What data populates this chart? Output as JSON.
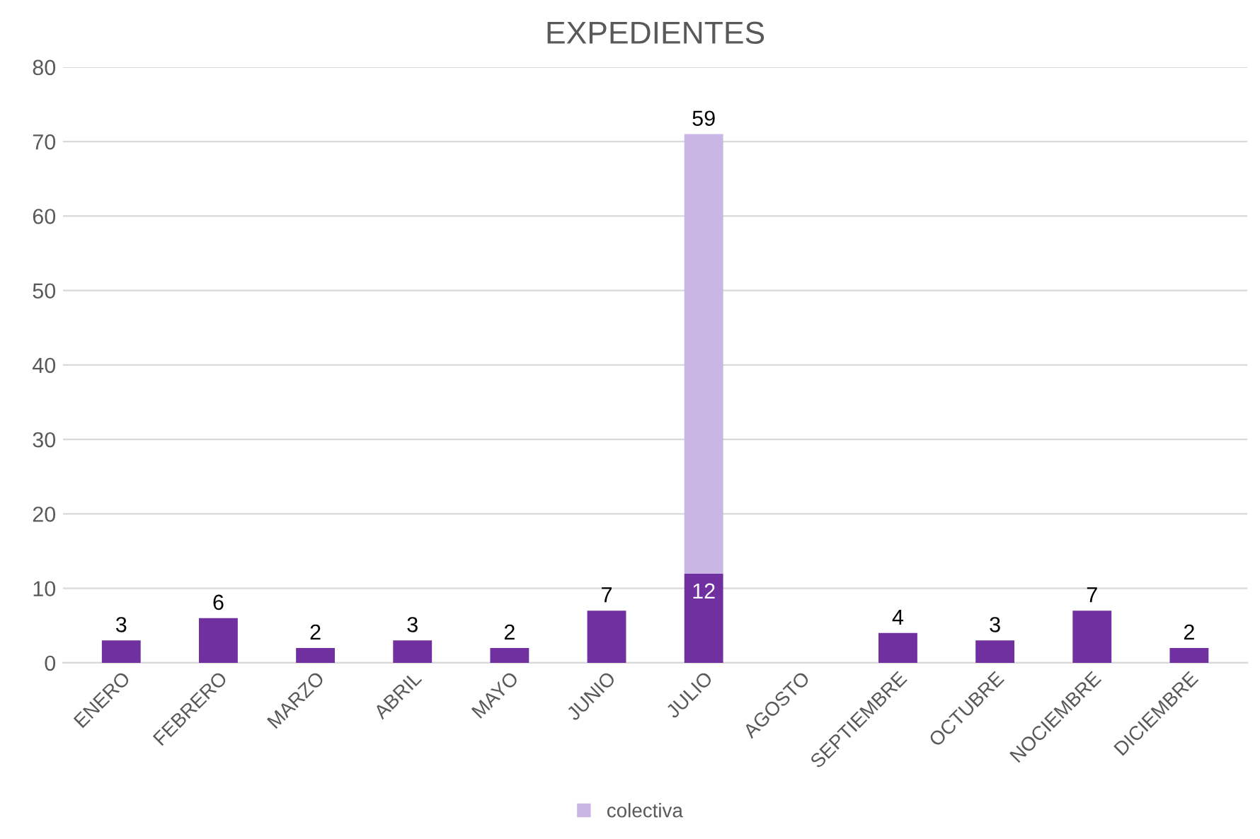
{
  "chart_data": {
    "type": "bar",
    "title": "EXPEDIENTES",
    "stacked": true,
    "categories": [
      "ENERO",
      "FEBRERO",
      "MARZO",
      "ABRIL",
      "MAYO",
      "JUNIO",
      "JULIO",
      "AGOSTO",
      "SEPTIEMBRE",
      "OCTUBRE",
      "NOCIEMBRE",
      "DICIEMBRE"
    ],
    "series": [
      {
        "color": "#7030a0",
        "values": [
          3,
          6,
          2,
          3,
          2,
          7,
          12,
          null,
          4,
          3,
          7,
          2
        ]
      },
      {
        "name": "colectiva",
        "color": "#c9b6e4",
        "values": [
          null,
          null,
          null,
          null,
          null,
          null,
          59,
          null,
          null,
          null,
          null,
          null
        ]
      }
    ],
    "ylim": [
      0,
      80
    ],
    "yticks": [
      0,
      10,
      20,
      30,
      40,
      50,
      60,
      70,
      80
    ],
    "grid": "y",
    "legend": "bottom",
    "data_labels": true
  }
}
